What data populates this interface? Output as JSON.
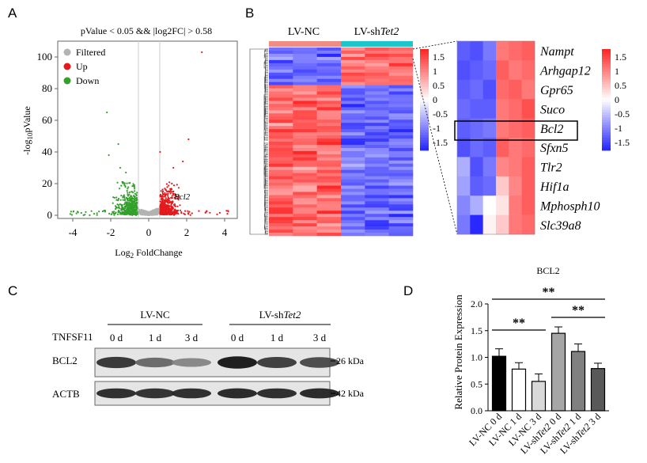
{
  "panels": {
    "a": "A",
    "b": "B",
    "c": "C",
    "d": "D"
  },
  "volcano": {
    "title": "pValue < 0.05 && |log2FC| > 0.58",
    "ylabel_pre": "-log",
    "ylabel_sub": "10",
    "ylabel_post": "pValue",
    "xlabel_pre": "Log",
    "xlabel_sub": "2",
    "xlabel_post": " FoldChange",
    "xticks": [
      "-4",
      "-2",
      "0",
      "2",
      "4"
    ],
    "yticks": [
      "0",
      "20",
      "40",
      "60",
      "80",
      "100"
    ],
    "legend": [
      {
        "label": "Filtered",
        "color": "#b3b3b3"
      },
      {
        "label": "Up",
        "color": "#e41a1c"
      },
      {
        "label": "Down",
        "color": "#33a02c"
      }
    ],
    "annotation": "Bcl2"
  },
  "heatmap": {
    "group1": "LV-NC",
    "group2_pre": "LV-sh",
    "group2_italic": "Tet2",
    "group1_color": "#f08c84",
    "group2_color": "#1cc7cc",
    "scale_ticks": [
      "1.5",
      "1",
      "0.5",
      "0",
      "-0.5",
      "-1",
      "-1.5"
    ],
    "genes": [
      "Nampt",
      "Arhgap12",
      "Gpr65",
      "Suco",
      "Bcl2",
      "Sfxn5",
      "Tlr2",
      "Hif1a",
      "Mphosph10",
      "Slc39a8"
    ],
    "highlight_gene": "Bcl2"
  },
  "western": {
    "group1": "LV-NC",
    "group2_pre": "LV-sh",
    "group2_italic": "Tet2",
    "treatment": "TNFSF11",
    "timepoints": [
      "0 d",
      "1 d",
      "3 d",
      "0 d",
      "1 d",
      "3 d"
    ],
    "rows": [
      {
        "protein": "BCL2",
        "size": "26 kDa"
      },
      {
        "protein": "ACTB",
        "size": "42 kDa"
      }
    ]
  },
  "chart_data": {
    "type": "bar",
    "title": "BCL2",
    "ylabel": "Relative Protein Expression",
    "ylim": [
      0,
      2.0
    ],
    "yticks": [
      "0.0",
      "0.5",
      "1.0",
      "1.5",
      "2.0"
    ],
    "categories": [
      "LV-NC 0 d",
      "LV-NC 1 d",
      "LV-NC 3 d",
      "LV-shTet2 0 d",
      "LV-shTet2 1 d",
      "LV-shTet2 3 d"
    ],
    "values": [
      1.02,
      0.78,
      0.55,
      1.45,
      1.11,
      0.79
    ],
    "errors": [
      0.14,
      0.12,
      0.14,
      0.12,
      0.14,
      0.1
    ],
    "colors": [
      "#000000",
      "#ffffff",
      "#d9d9d9",
      "#a6a6a6",
      "#808080",
      "#595959"
    ],
    "significance": [
      {
        "from": 0,
        "to": 5,
        "label": "**"
      },
      {
        "from": 0,
        "to": 2,
        "label": "**"
      },
      {
        "from": 3,
        "to": 5,
        "label": "**"
      }
    ]
  }
}
